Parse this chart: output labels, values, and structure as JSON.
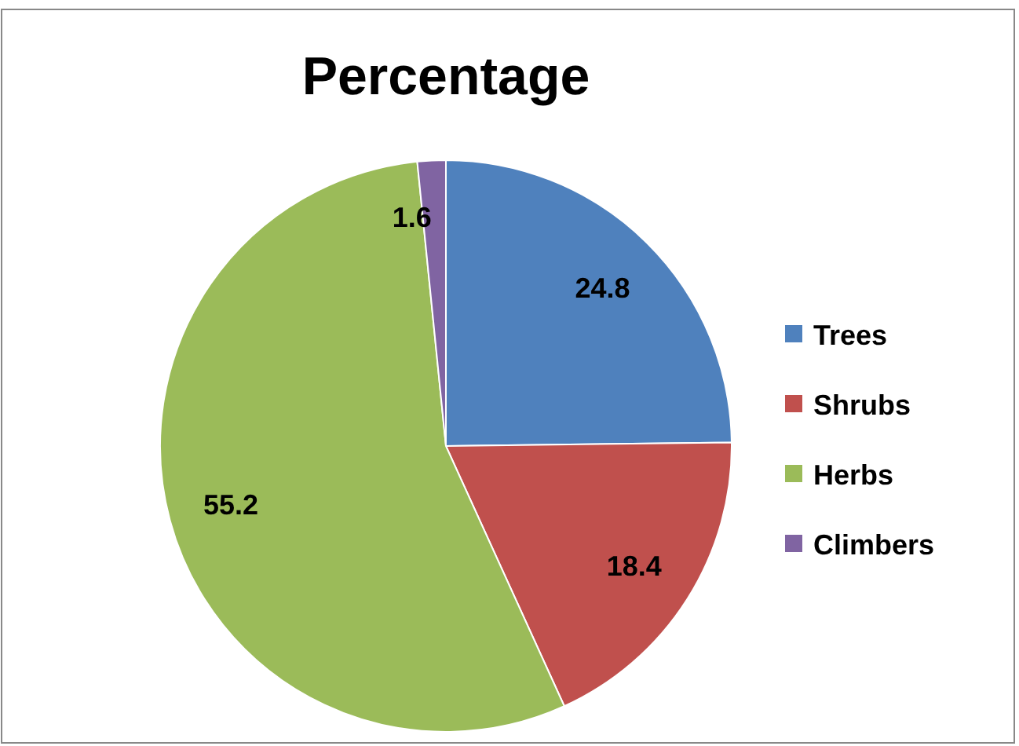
{
  "chart_data": {
    "type": "pie",
    "title": "Percentage",
    "categories": [
      "Trees",
      "Shrubs",
      "Herbs",
      "Climbers"
    ],
    "values": [
      24.8,
      18.4,
      55.2,
      1.6
    ],
    "colors": [
      "#4f81bd",
      "#c0504d",
      "#9bbb59",
      "#8064a2"
    ],
    "data_labels": true,
    "legend": "right"
  }
}
